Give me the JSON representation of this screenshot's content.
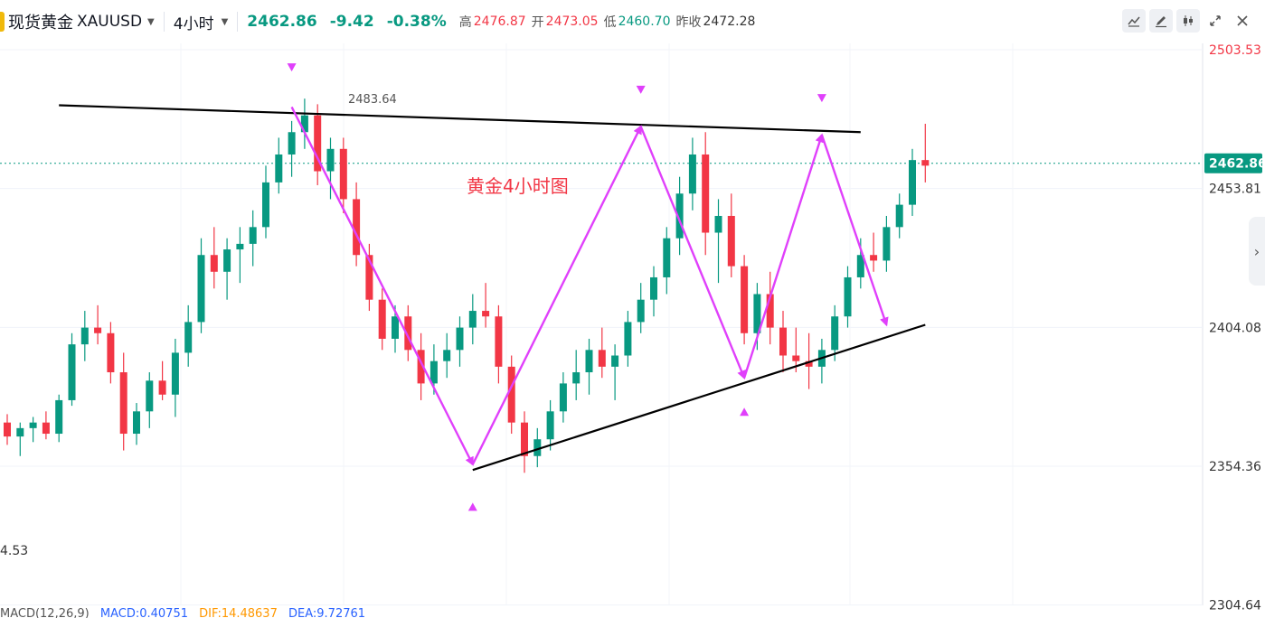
{
  "header": {
    "symbol_name": "现货黄金",
    "symbol_code": "XAUUSD",
    "interval": "4小时",
    "last_price": "2462.86",
    "change": "-9.42",
    "change_pct": "-0.38%",
    "high_label": "高",
    "high_value": "2476.87",
    "open_label": "开",
    "open_value": "2473.05",
    "low_label": "低",
    "low_value": "2460.70",
    "prev_close_label": "昨收",
    "prev_close_value": "2472.28"
  },
  "toolbar_icons": [
    "line-chart-icon",
    "pencil-icon",
    "candles-icon",
    "fullscreen-icon",
    "close-icon"
  ],
  "colors": {
    "up": "#089981",
    "down": "#f23645",
    "pattern": "#e040fb",
    "trendline": "#000000",
    "label": "#f23645"
  },
  "left_value": "4.53",
  "macd": {
    "name": "MACD(12,26,9)",
    "macd_label": "MACD:0.40751",
    "dif_label": "DIF:14.48637",
    "dea_label": "DEA:9.72761"
  },
  "chart_data": {
    "type": "candlestick",
    "title": "黄金4小时图",
    "y_ticks": [
      "2503.53",
      "2453.81",
      "2404.08",
      "2354.36",
      "2304.64"
    ],
    "current_price": "2462.86",
    "high_annotation": "2483.64",
    "ylim": [
      2300,
      2510
    ],
    "candles": [
      [
        2370,
        2373,
        2362,
        2365
      ],
      [
        2365,
        2370,
        2358,
        2368
      ],
      [
        2368,
        2372,
        2363,
        2370
      ],
      [
        2370,
        2374,
        2364,
        2366
      ],
      [
        2366,
        2380,
        2363,
        2378
      ],
      [
        2378,
        2402,
        2376,
        2398
      ],
      [
        2398,
        2410,
        2392,
        2404
      ],
      [
        2404,
        2412,
        2398,
        2402
      ],
      [
        2402,
        2406,
        2384,
        2388
      ],
      [
        2388,
        2395,
        2360,
        2366
      ],
      [
        2366,
        2377,
        2362,
        2374
      ],
      [
        2374,
        2388,
        2368,
        2385
      ],
      [
        2385,
        2392,
        2378,
        2380
      ],
      [
        2380,
        2400,
        2372,
        2395
      ],
      [
        2395,
        2412,
        2390,
        2406
      ],
      [
        2406,
        2436,
        2402,
        2430
      ],
      [
        2430,
        2440,
        2418,
        2424
      ],
      [
        2424,
        2436,
        2414,
        2432
      ],
      [
        2432,
        2440,
        2420,
        2434
      ],
      [
        2434,
        2446,
        2426,
        2440
      ],
      [
        2440,
        2462,
        2436,
        2456
      ],
      [
        2456,
        2472,
        2452,
        2466
      ],
      [
        2466,
        2478,
        2458,
        2474
      ],
      [
        2474,
        2486,
        2468,
        2480
      ],
      [
        2480,
        2484,
        2455,
        2460
      ],
      [
        2460,
        2472,
        2450,
        2468
      ],
      [
        2468,
        2472,
        2445,
        2450
      ],
      [
        2450,
        2456,
        2426,
        2430
      ],
      [
        2430,
        2434,
        2410,
        2414
      ],
      [
        2414,
        2418,
        2396,
        2400
      ],
      [
        2400,
        2412,
        2395,
        2408
      ],
      [
        2408,
        2412,
        2392,
        2396
      ],
      [
        2396,
        2402,
        2378,
        2384
      ],
      [
        2384,
        2398,
        2380,
        2392
      ],
      [
        2392,
        2402,
        2386,
        2396
      ],
      [
        2396,
        2408,
        2390,
        2404
      ],
      [
        2404,
        2416,
        2398,
        2410
      ],
      [
        2410,
        2420,
        2404,
        2408
      ],
      [
        2408,
        2412,
        2384,
        2390
      ],
      [
        2390,
        2394,
        2366,
        2370
      ],
      [
        2370,
        2374,
        2352,
        2358
      ],
      [
        2358,
        2368,
        2354,
        2364
      ],
      [
        2364,
        2378,
        2360,
        2374
      ],
      [
        2374,
        2388,
        2370,
        2384
      ],
      [
        2384,
        2396,
        2378,
        2388
      ],
      [
        2388,
        2400,
        2380,
        2396
      ],
      [
        2396,
        2404,
        2386,
        2390
      ],
      [
        2390,
        2398,
        2378,
        2394
      ],
      [
        2394,
        2410,
        2390,
        2406
      ],
      [
        2406,
        2420,
        2402,
        2414
      ],
      [
        2414,
        2426,
        2408,
        2422
      ],
      [
        2422,
        2440,
        2416,
        2436
      ],
      [
        2436,
        2458,
        2430,
        2452
      ],
      [
        2452,
        2472,
        2446,
        2466
      ],
      [
        2466,
        2474,
        2430,
        2438
      ],
      [
        2438,
        2450,
        2420,
        2444
      ],
      [
        2444,
        2452,
        2422,
        2426
      ],
      [
        2426,
        2430,
        2398,
        2402
      ],
      [
        2402,
        2420,
        2396,
        2416
      ],
      [
        2416,
        2424,
        2398,
        2404
      ],
      [
        2404,
        2410,
        2388,
        2394
      ],
      [
        2394,
        2404,
        2388,
        2392
      ],
      [
        2392,
        2402,
        2382,
        2390
      ],
      [
        2390,
        2400,
        2384,
        2396
      ],
      [
        2396,
        2412,
        2392,
        2408
      ],
      [
        2408,
        2426,
        2404,
        2422
      ],
      [
        2422,
        2436,
        2418,
        2430
      ],
      [
        2430,
        2438,
        2424,
        2428
      ],
      [
        2428,
        2444,
        2424,
        2440
      ],
      [
        2440,
        2452,
        2436,
        2448
      ],
      [
        2448,
        2468,
        2444,
        2464
      ],
      [
        2464,
        2477,
        2456,
        2462
      ]
    ],
    "trendlines": [
      {
        "from": [
          4,
          2483.64
        ],
        "to": [
          66,
          2474
        ],
        "color": "#000000"
      },
      {
        "from": [
          36,
          2353
        ],
        "to": [
          71,
          2405
        ],
        "color": "#000000"
      }
    ],
    "zigzag": [
      {
        "from": [
          22,
          2483
        ],
        "to": [
          36,
          2355
        ]
      },
      {
        "from": [
          36,
          2355
        ],
        "to": [
          49,
          2476
        ]
      },
      {
        "from": [
          49,
          2476
        ],
        "to": [
          57,
          2386
        ]
      },
      {
        "from": [
          57,
          2386
        ],
        "to": [
          63,
          2473
        ]
      },
      {
        "from": [
          63,
          2473
        ],
        "to": [
          68,
          2405
        ]
      }
    ],
    "markers": [
      {
        "index": 22,
        "value": 2497,
        "dir": "down"
      },
      {
        "index": 49,
        "value": 2489,
        "dir": "down"
      },
      {
        "index": 63,
        "value": 2486,
        "dir": "down"
      },
      {
        "index": 36,
        "value": 2340,
        "dir": "up"
      },
      {
        "index": 57,
        "value": 2374,
        "dir": "up"
      }
    ]
  }
}
